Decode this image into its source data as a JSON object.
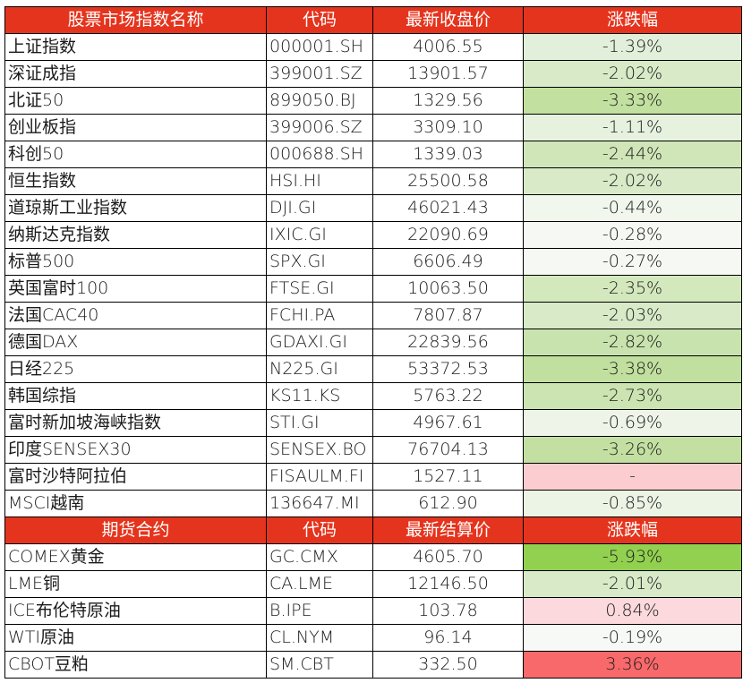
{
  "stock_section": {
    "headers": [
      "股票市场指数名称",
      "代码",
      "最新收盘价",
      "涨跌幅"
    ],
    "rows": [
      {
        "name": "上证指数",
        "code": "000001.SH",
        "price": "4006.55",
        "change": "-1.39%",
        "color": "#e2efda"
      },
      {
        "name": "深证成指",
        "code": "399001.SZ",
        "price": "13901.57",
        "change": "-2.02%",
        "color": "#d8eac8"
      },
      {
        "name": "北证50",
        "code": "899050.BJ",
        "price": "1329.56",
        "change": "-3.33%",
        "color": "#c2e0a0"
      },
      {
        "name": "创业板指",
        "code": "399006.SZ",
        "price": "3309.10",
        "change": "-1.11%",
        "color": "#e6f1de"
      },
      {
        "name": "科创50",
        "code": "000688.SH",
        "price": "1339.03",
        "change": "-2.44%",
        "color": "#d0e6b8"
      },
      {
        "name": "恒生指数",
        "code": "HSI.HI",
        "price": "25500.58",
        "change": "-2.02%",
        "color": "#d8eac8"
      },
      {
        "name": "道琼斯工业指数",
        "code": "DJI.GI",
        "price": "46021.43",
        "change": "-0.44%",
        "color": "#f2f7ee"
      },
      {
        "name": "纳斯达克指数",
        "code": "IXIC.GI",
        "price": "22090.69",
        "change": "-0.28%",
        "color": "#f5f8f3"
      },
      {
        "name": "标普500",
        "code": "SPX.GI",
        "price": "6606.49",
        "change": "-0.27%",
        "color": "#f5f8f3"
      },
      {
        "name": "英国富时100",
        "code": "FTSE.GI",
        "price": "10063.50",
        "change": "-2.35%",
        "color": "#d3e8bd"
      },
      {
        "name": "法国CAC40",
        "code": "FCHI.PA",
        "price": "7807.87",
        "change": "-2.03%",
        "color": "#d8eac8"
      },
      {
        "name": "德国DAX",
        "code": "GDAXI.GI",
        "price": "22839.56",
        "change": "-2.82%",
        "color": "#c9e3ae"
      },
      {
        "name": "日经225",
        "code": "N225.GI",
        "price": "53372.53",
        "change": "-3.38%",
        "color": "#c1df9e"
      },
      {
        "name": "韩国综指",
        "code": "KS11.KS",
        "price": "5763.22",
        "change": "-2.73%",
        "color": "#cbe4b1"
      },
      {
        "name": "富时新加坡海峡指数",
        "code": "STI.GI",
        "price": "4967.61",
        "change": "-0.69%",
        "color": "#eef5e8"
      },
      {
        "name": "印度SENSEX30",
        "code": "SENSEX.BO",
        "price": "76704.13",
        "change": "-3.26%",
        "color": "#c3e0a2"
      },
      {
        "name": "富时沙特阿拉伯",
        "code": "FISAULM.FI",
        "price": "1527.11",
        "change": "-",
        "color": "#fbcdd1"
      },
      {
        "name": "MSCI越南",
        "code": "136647.MI",
        "price": "612.90",
        "change": "-0.85%",
        "color": "#ecf4e5"
      }
    ]
  },
  "futures_section": {
    "headers": [
      "期货合约",
      "代码",
      "最新结算价",
      "涨跌幅"
    ],
    "rows": [
      {
        "name": "COMEX黄金",
        "code": "GC.CMX",
        "price": "4605.70",
        "change": "-5.93%",
        "color": "#92d050"
      },
      {
        "name": "LME铜",
        "code": "CA.LME",
        "price": "12146.50",
        "change": "-2.01%",
        "color": "#d8eac8"
      },
      {
        "name": "ICE布伦特原油",
        "code": "B.IPE",
        "price": "103.78",
        "change": "0.84%",
        "color": "#fcd9dc"
      },
      {
        "name": "WTI原油",
        "code": "CL.NYM",
        "price": "96.14",
        "change": "-0.19%",
        "color": "#f7f9f6"
      },
      {
        "name": "CBOT豆粕",
        "code": "SM.CBT",
        "price": "332.50",
        "change": "3.36%",
        "color": "#f8696b"
      }
    ]
  },
  "colors": {
    "header_bg": "#e5341d",
    "header_text": "#ffffff",
    "border": "#000000"
  }
}
